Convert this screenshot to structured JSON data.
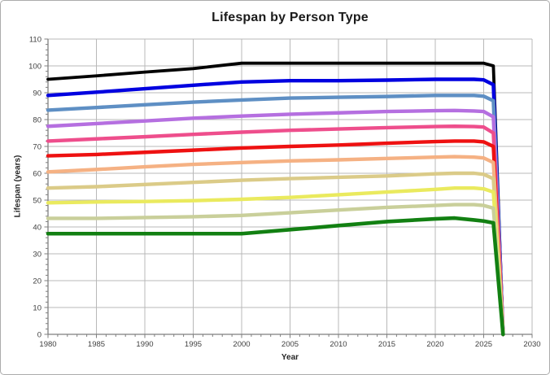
{
  "window": {
    "background": "#FFFFFF",
    "border_color": "#ACACAC"
  },
  "chart_data": {
    "type": "line",
    "title": "Lifespan by Person Type",
    "xlabel": "Year",
    "ylabel": "Lifespan (years)",
    "xlim": [
      1980,
      2030
    ],
    "ylim": [
      0,
      110
    ],
    "xticks": [
      1980,
      1985,
      1990,
      1995,
      2000,
      2005,
      2010,
      2015,
      2020,
      2025,
      2030
    ],
    "yticks": [
      0,
      10,
      20,
      30,
      40,
      50,
      60,
      70,
      80,
      90,
      100,
      110
    ],
    "x_minor_step": 1,
    "y_minor_step": 2,
    "grid": true,
    "grid_color": "#B8B8B8",
    "axis_color": "#7F7F7F",
    "tick_label_color": "#3F3F3F",
    "legend_position": "none",
    "x": [
      1980,
      1985,
      1990,
      1995,
      2000,
      2005,
      2010,
      2015,
      2020,
      2022,
      2024,
      2025,
      2026,
      2027
    ],
    "series": [
      {
        "name": "black",
        "color": "#000000",
        "width": 3.8,
        "values": [
          95,
          96.3,
          97.7,
          99,
          101,
          101,
          101,
          101,
          101,
          101,
          101,
          101,
          100,
          1
        ]
      },
      {
        "name": "blue",
        "color": "#0000E0",
        "width": 4.4,
        "values": [
          89,
          90.2,
          91.5,
          92.8,
          94,
          94.5,
          94.5,
          94.7,
          95,
          95,
          95,
          94.8,
          93,
          0
        ]
      },
      {
        "name": "light-blue",
        "color": "#5E8FC4",
        "width": 4.4,
        "values": [
          83.5,
          84.5,
          85.5,
          86.5,
          87.3,
          88,
          88.3,
          88.6,
          89,
          89,
          89,
          88.7,
          87,
          0
        ]
      },
      {
        "name": "violet",
        "color": "#B56FE0",
        "width": 4.4,
        "values": [
          77.5,
          78.5,
          79.5,
          80.5,
          81.3,
          82,
          82.5,
          83,
          83.3,
          83.4,
          83.2,
          83,
          81,
          0
        ]
      },
      {
        "name": "pink",
        "color": "#EE4E8C",
        "width": 4.4,
        "values": [
          72,
          72.8,
          73.6,
          74.5,
          75.3,
          76,
          76.5,
          77,
          77.4,
          77.5,
          77.4,
          77.2,
          75,
          0
        ]
      },
      {
        "name": "red",
        "color": "#EE1111",
        "width": 4.4,
        "values": [
          66.5,
          67,
          67.8,
          68.6,
          69.4,
          70,
          70.5,
          71.2,
          71.8,
          72,
          72,
          71.7,
          70,
          0
        ]
      },
      {
        "name": "peach",
        "color": "#F5B183",
        "width": 4.4,
        "values": [
          60.5,
          61.4,
          62.4,
          63.3,
          64,
          64.6,
          65,
          65.5,
          66,
          66.2,
          66,
          65.7,
          64,
          0
        ]
      },
      {
        "name": "tan",
        "color": "#DBCB88",
        "width": 4.4,
        "values": [
          54.5,
          55,
          55.8,
          56.6,
          57.4,
          58,
          58.5,
          59,
          59.8,
          60,
          60,
          59.6,
          58,
          0
        ]
      },
      {
        "name": "yellow",
        "color": "#EAEA5E",
        "width": 4.4,
        "values": [
          49,
          49.3,
          49.5,
          49.8,
          50.3,
          51,
          52,
          53,
          54,
          54.5,
          54.5,
          54.2,
          53,
          0
        ]
      },
      {
        "name": "pale-olive",
        "color": "#C9CF9A",
        "width": 4.4,
        "values": [
          43.2,
          43.2,
          43.5,
          43.8,
          44.3,
          45.3,
          46.3,
          47.3,
          48,
          48.3,
          48.3,
          48,
          47,
          0
        ]
      },
      {
        "name": "green",
        "color": "#128012",
        "width": 4.6,
        "values": [
          37.5,
          37.5,
          37.5,
          37.5,
          37.5,
          39,
          40.5,
          42,
          43,
          43.3,
          42.6,
          42.2,
          41.5,
          0
        ]
      }
    ]
  }
}
